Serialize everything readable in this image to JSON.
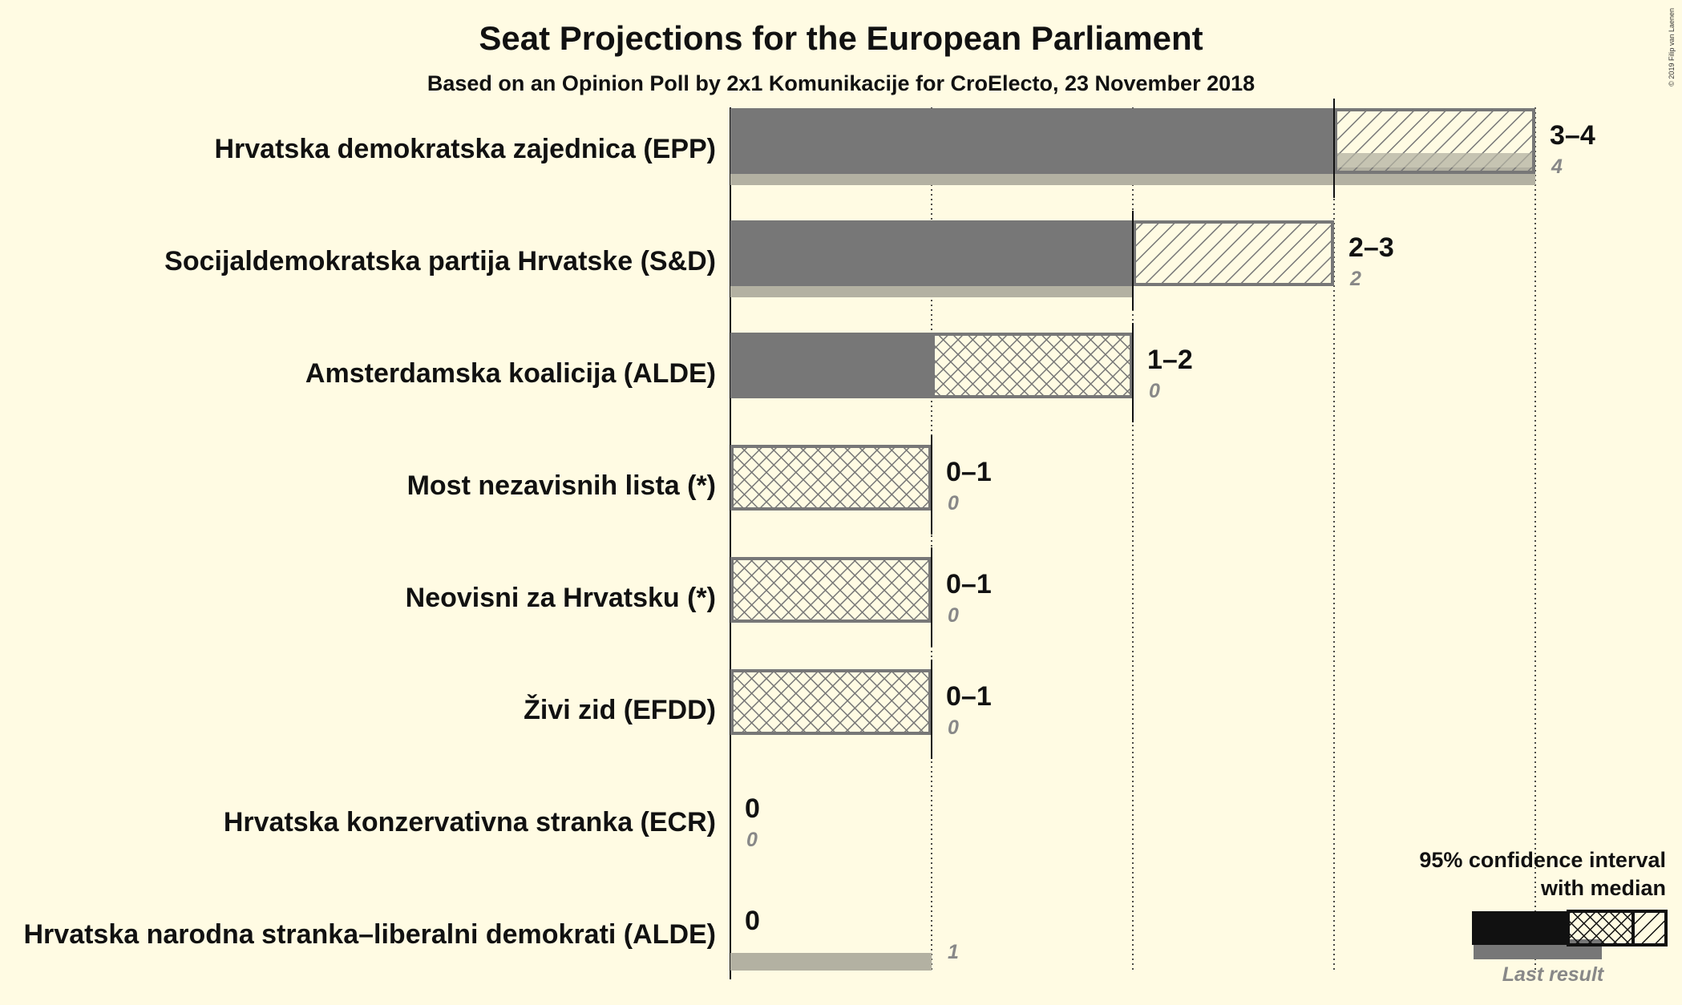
{
  "chart_data": {
    "type": "bar",
    "title": "Seat Projections for the European Parliament",
    "subtitle": "Based on an Opinion Poll by 2x1 Komunikacije for CroElecto, 23 November 2018",
    "copyright": "© 2019 Filip van Laenen",
    "xlim": [
      0,
      4
    ],
    "ticks": [
      0,
      1,
      2,
      3,
      4
    ],
    "parties": [
      {
        "name": "Hrvatska demokratska zajednica (EPP)",
        "low": 3,
        "median": 3,
        "high": 4,
        "last": 4,
        "range_label": "3–4",
        "last_label": "4"
      },
      {
        "name": "Socijaldemokratska partija Hrvatske (S&D)",
        "low": 2,
        "median": 2,
        "high": 3,
        "last": 2,
        "range_label": "2–3",
        "last_label": "2"
      },
      {
        "name": "Amsterdamska koalicija (ALDE)",
        "low": 1,
        "median": 2,
        "high": 2,
        "last": 0,
        "range_label": "1–2",
        "last_label": "0"
      },
      {
        "name": "Most nezavisnih lista (*)",
        "low": 0,
        "median": 1,
        "high": 1,
        "last": 0,
        "range_label": "0–1",
        "last_label": "0"
      },
      {
        "name": "Neovisni za Hrvatsku (*)",
        "low": 0,
        "median": 1,
        "high": 1,
        "last": 0,
        "range_label": "0–1",
        "last_label": "0"
      },
      {
        "name": "Živi zid (EFDD)",
        "low": 0,
        "median": 1,
        "high": 1,
        "last": 0,
        "range_label": "0–1",
        "last_label": "0"
      },
      {
        "name": "Hrvatska konzervativna stranka (ECR)",
        "low": 0,
        "median": 0,
        "high": 0,
        "last": 0,
        "range_label": "0",
        "last_label": "0"
      },
      {
        "name": "Hrvatska narodna stranka–liberalni demokrati (ALDE)",
        "low": 0,
        "median": 0,
        "high": 0,
        "last": 1,
        "range_label": "0",
        "last_label": "1"
      }
    ],
    "legend": {
      "title_line1": "95% confidence interval",
      "title_line2": "with median",
      "last_result": "Last result",
      "position": "bottom-right"
    },
    "colors": {
      "background": "#fffbe3",
      "bar": "#777777",
      "last_result": "#b3b1a2",
      "text": "#111111",
      "last_label": "#888888",
      "legend_solid": "#111111"
    }
  }
}
